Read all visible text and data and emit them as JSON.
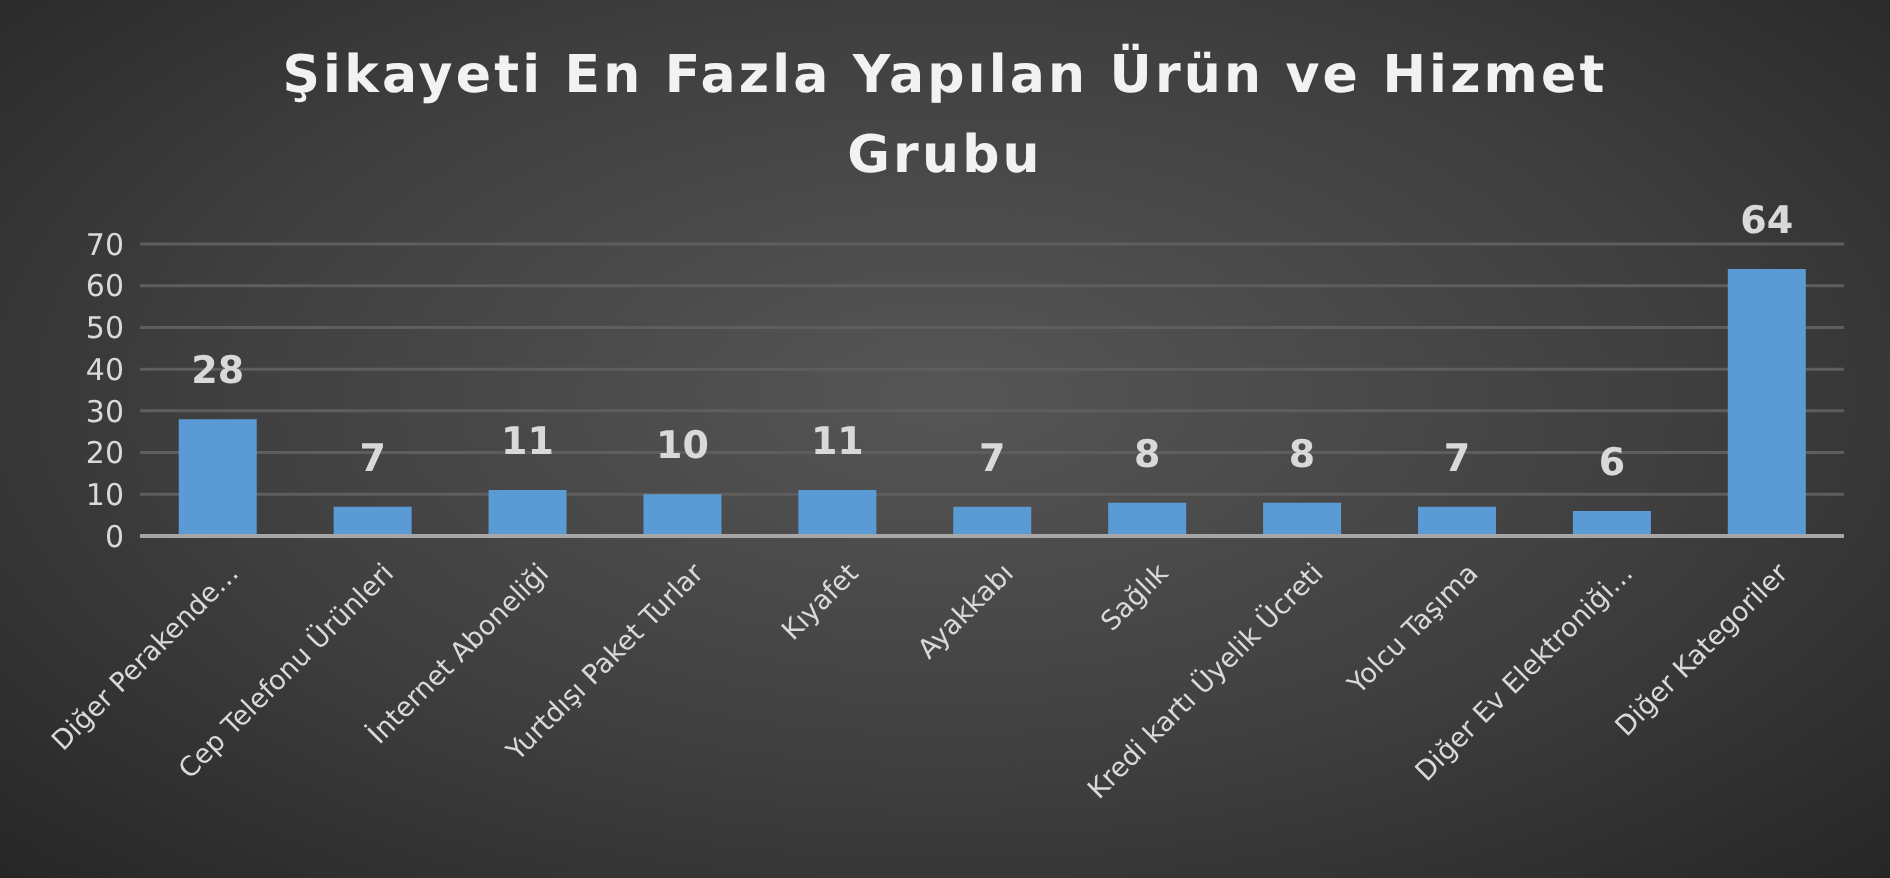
{
  "chart_data": {
    "type": "bar",
    "title": "Şikayeti En Fazla Yapılan Ürün ve Hizmet Grubu",
    "categories": [
      "Diğer Perakende…",
      "Cep Telefonu Ürünleri",
      "İnternet Aboneliği",
      "Yurtdışı Paket Turlar",
      "Kıyafet",
      "Ayakkabı",
      "Sağlık",
      "Kredi kartı Üyelik Ücreti",
      "Yolcu Taşıma",
      "Diğer Ev Elektroniği…",
      "Diğer Kategoriler"
    ],
    "values": [
      28,
      7,
      11,
      10,
      11,
      7,
      8,
      8,
      7,
      6,
      64
    ],
    "color": "#5b9bd5",
    "ylim": [
      0,
      70
    ],
    "yticks": [
      0,
      10,
      20,
      30,
      40,
      50,
      60,
      70
    ],
    "grid": "y",
    "data_labels": true
  }
}
